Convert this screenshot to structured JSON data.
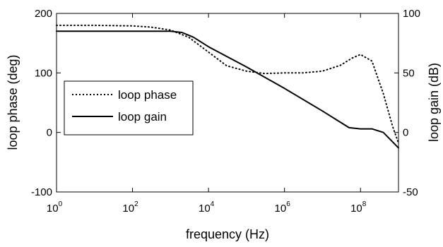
{
  "chart_data": {
    "type": "line",
    "title": "",
    "xlabel": "frequency (Hz)",
    "ylabel_left": "loop phase (deg)",
    "ylabel_right": "loop gain (dB)",
    "x_scale": "log",
    "xlim": [
      1,
      1000000000
    ],
    "ylim_left": [
      -100,
      200
    ],
    "ylim_right": [
      -50,
      100
    ],
    "x_ticks": [
      {
        "value": 1,
        "base": "10",
        "exp": "0"
      },
      {
        "value": 100,
        "base": "10",
        "exp": "2"
      },
      {
        "value": 10000,
        "base": "10",
        "exp": "4"
      },
      {
        "value": 1000000,
        "base": "10",
        "exp": "6"
      },
      {
        "value": 100000000,
        "base": "10",
        "exp": "8"
      }
    ],
    "y_ticks_left": [
      "200",
      "100",
      "0",
      "-100"
    ],
    "y_ticks_right": [
      "100",
      "50",
      "0",
      "-50"
    ],
    "grid": false,
    "legend": {
      "position": "left",
      "entries": [
        "loop phase",
        "loop gain"
      ]
    },
    "series": [
      {
        "name": "loop phase",
        "axis": "left",
        "style": "dotted",
        "x": [
          1,
          10,
          100,
          300,
          1000,
          3000,
          10000,
          30000,
          100000,
          300000,
          1000000,
          3000000,
          10000000,
          30000000,
          60000000,
          100000000,
          200000000,
          400000000,
          700000000,
          1000000000
        ],
        "y": [
          180,
          180,
          179,
          177,
          172,
          160,
          135,
          112,
          103,
          99,
          100,
          100,
          103,
          113,
          125,
          131,
          120,
          65,
          10,
          -18
        ]
      },
      {
        "name": "loop gain",
        "axis": "right",
        "style": "solid",
        "x": [
          1,
          10,
          100,
          1000,
          2000,
          4000,
          10000,
          100000,
          1000000,
          10000000,
          50000000,
          100000000,
          200000000,
          400000000,
          1000000000
        ],
        "y": [
          85,
          85,
          85,
          85,
          84,
          80,
          72,
          55,
          37,
          18,
          4,
          3,
          3,
          0,
          -13
        ]
      }
    ]
  }
}
